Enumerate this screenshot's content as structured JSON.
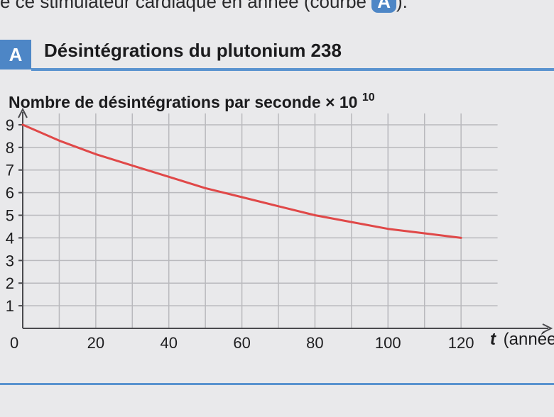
{
  "page": {
    "top_text": "e ce stimulateur cardiaque en année (courbe ",
    "top_badge": "A",
    "top_text_end": ").",
    "section_tag": "A",
    "section_title": "Désintégrations du plutonium 238"
  },
  "colors": {
    "accent": "#4d86c6",
    "curve": "#e04848",
    "grid": "#b9b9bd",
    "axis": "#4a4a4e"
  },
  "chart_data": {
    "type": "line",
    "title": "Nombre de désintégrations par seconde × 10¹⁰",
    "ylabel_main": "Nombre de désintégrations par seconde",
    "ylabel_unit_base": "× 10",
    "ylabel_unit_exp": "10",
    "xlabel_var": "t",
    "xlabel_unit": "(année",
    "xlim": [
      0,
      140
    ],
    "ylim": [
      0,
      9.5
    ],
    "x_ticks": [
      "0",
      "20",
      "40",
      "60",
      "80",
      "100",
      "120"
    ],
    "y_ticks": [
      "1",
      "2",
      "3",
      "4",
      "5",
      "6",
      "7",
      "8",
      "9"
    ],
    "grid": true,
    "series": [
      {
        "x": [
          0,
          10,
          20,
          30,
          40,
          50,
          60,
          70,
          80,
          90,
          100,
          110,
          120
        ],
        "values": [
          9.0,
          8.3,
          7.7,
          7.2,
          6.7,
          6.2,
          5.8,
          5.4,
          5.0,
          4.7,
          4.4,
          4.2,
          4.0
        ]
      }
    ]
  }
}
